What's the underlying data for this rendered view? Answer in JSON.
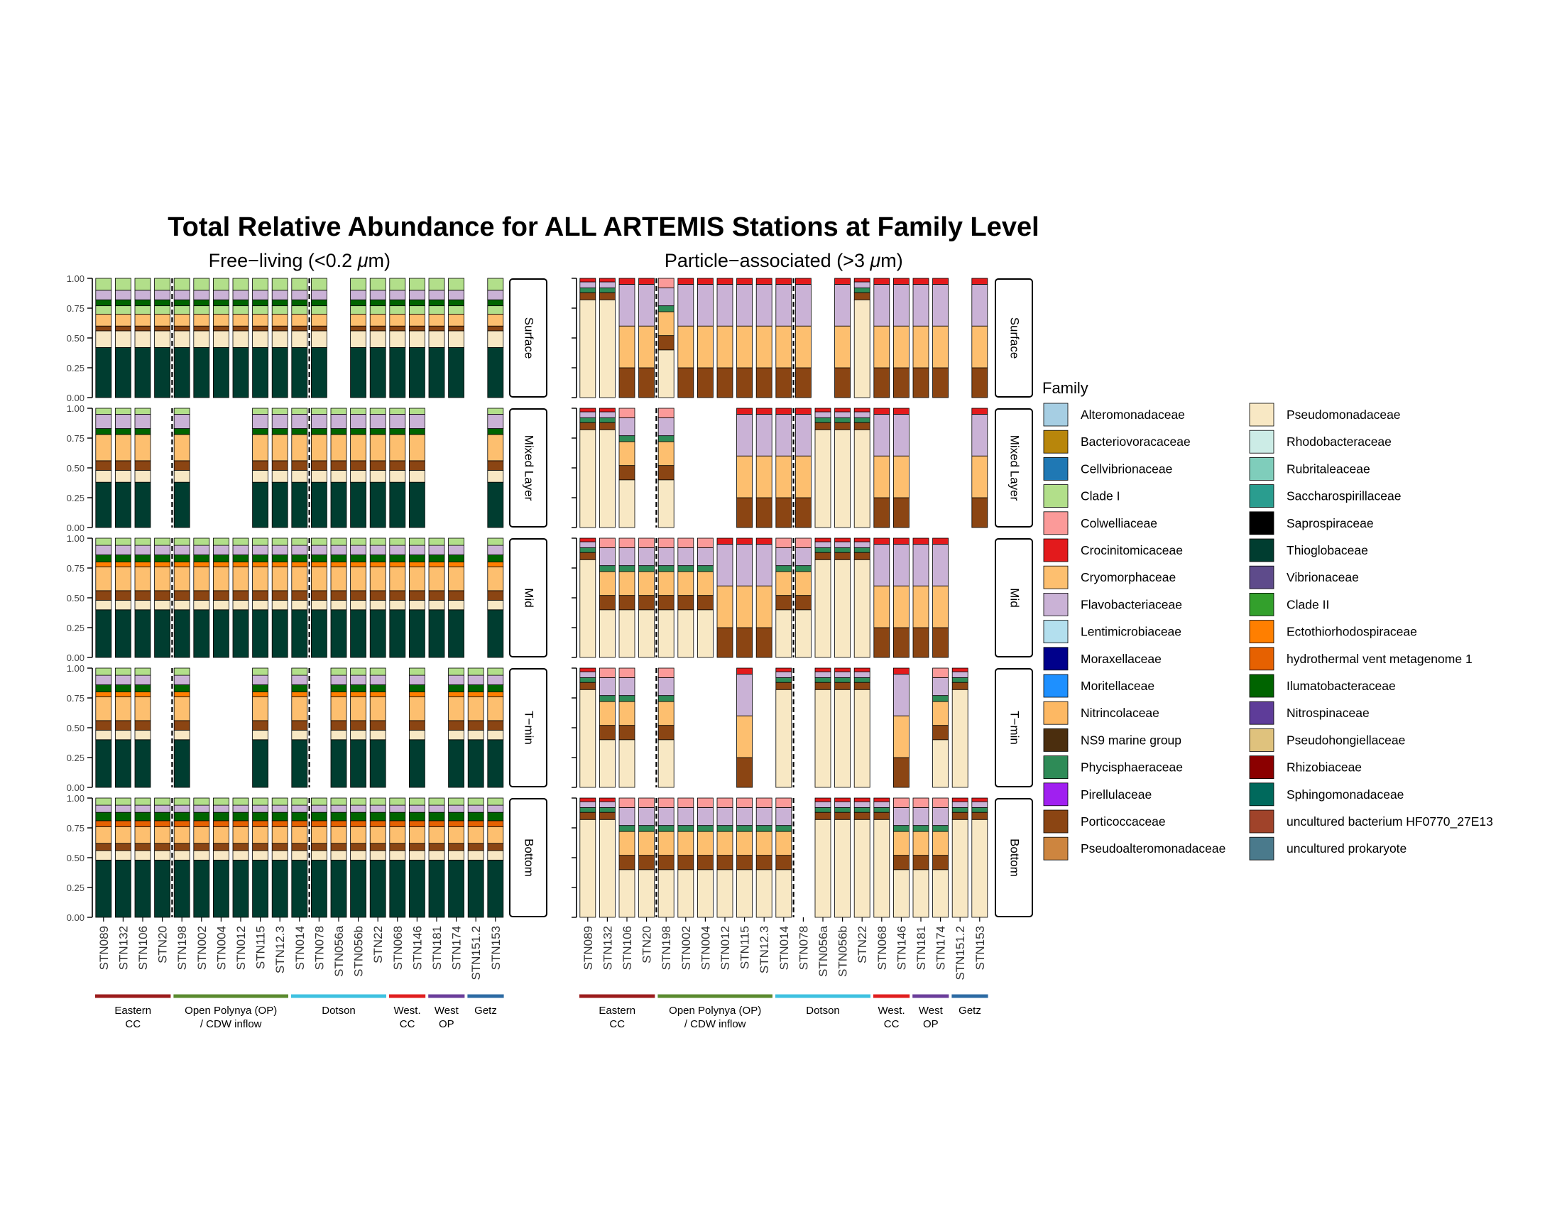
{
  "chart_data": {
    "type": "bar",
    "stacked": true,
    "title": "Total Relative Abundance for ALL ARTEMIS Stations at Family Level",
    "panels": [
      "Free-living (<0.2 μm)",
      "Particle-associated (>3 μm)"
    ],
    "panel_parts": [
      [
        "Free−living (<0.2 ",
        "μ",
        "m)"
      ],
      [
        "Particle−associated (>3 ",
        "μ",
        "m)"
      ]
    ],
    "depth_layers": [
      "Surface",
      "Mixed Layer",
      "Mid",
      "T−min",
      "Bottom"
    ],
    "stations": [
      "STN089",
      "STN132",
      "STN106",
      "STN20",
      "STN198",
      "STN002",
      "STN004",
      "STN012",
      "STN115",
      "STN12.3",
      "STN014",
      "STN078",
      "STN056a",
      "STN056b",
      "STN22",
      "STN068",
      "STN146",
      "STN181",
      "STN174",
      "STN151.2",
      "STN153"
    ],
    "yticks": [
      "0.00",
      "0.25",
      "0.50",
      "0.75",
      "1.00"
    ],
    "ylim": [
      0,
      1
    ],
    "regions": [
      {
        "label": [
          "Eastern",
          "CC"
        ],
        "from": 0,
        "to": 3,
        "color": "#9b1b1b"
      },
      {
        "label": [
          "Open Polynya (OP)",
          "/ CDW inflow"
        ],
        "from": 4,
        "to": 9,
        "color": "#5a8a2e"
      },
      {
        "label": [
          "Dotson"
        ],
        "from": 10,
        "to": 14,
        "color": "#3ec1e0"
      },
      {
        "label": [
          "West.",
          "CC"
        ],
        "from": 15,
        "to": 16,
        "color": "#e01e1e"
      },
      {
        "label": [
          "West",
          "OP"
        ],
        "from": 17,
        "to": 18,
        "color": "#6a3d9a"
      },
      {
        "label": [
          "Getz"
        ],
        "from": 19,
        "to": 20,
        "color": "#2c6aa3"
      }
    ],
    "dashed_after_station": [
      3,
      10
    ],
    "legend_title": "Family",
    "legend_placement": "right",
    "families": [
      {
        "name": "Alteromonadaceae",
        "color": "#a6cee3"
      },
      {
        "name": "Bacteriovoracaceae",
        "color": "#b8860b"
      },
      {
        "name": "Cellvibrionaceae",
        "color": "#1f78b4"
      },
      {
        "name": "Clade I",
        "color": "#b2df8a"
      },
      {
        "name": "Colwelliaceae",
        "color": "#fb9a99"
      },
      {
        "name": "Crocinitomicaceae",
        "color": "#e31a1c"
      },
      {
        "name": "Cryomorphaceae",
        "color": "#fdbf6f"
      },
      {
        "name": "Flavobacteriaceae",
        "color": "#cab2d6"
      },
      {
        "name": "Lentimicrobiaceae",
        "color": "#b3dfee"
      },
      {
        "name": "Moraxellaceae",
        "color": "#00008b"
      },
      {
        "name": "Moritellaceae",
        "color": "#1e90ff"
      },
      {
        "name": "Nitrincolaceae",
        "color": "#fdb863"
      },
      {
        "name": "NS9 marine group",
        "color": "#4b2e0e"
      },
      {
        "name": "Phycisphaeraceae",
        "color": "#2e8b57"
      },
      {
        "name": "Pirellulaceae",
        "color": "#a020f0"
      },
      {
        "name": "Porticoccaceae",
        "color": "#8b4513"
      },
      {
        "name": "Pseudoalteromonadaceae",
        "color": "#cd853f"
      },
      {
        "name": "Pseudomonadaceae",
        "color": "#f8e8c4"
      },
      {
        "name": "Rhodobacteraceae",
        "color": "#ccece6"
      },
      {
        "name": "Rubritaleaceae",
        "color": "#7fcdbb"
      },
      {
        "name": "Saccharospirillaceae",
        "color": "#2a9d8f"
      },
      {
        "name": "Saprospiraceae",
        "color": "#000000"
      },
      {
        "name": "Thioglobaceae",
        "color": "#003d30"
      },
      {
        "name": "Vibrionaceae",
        "color": "#5e4b8b"
      },
      {
        "name": "Clade II",
        "color": "#33a02c"
      },
      {
        "name": "Ectothiorhodospiraceae",
        "color": "#ff7f00"
      },
      {
        "name": "hydrothermal vent metagenome 1",
        "color": "#e66101"
      },
      {
        "name": "Ilumatobacteraceae",
        "color": "#006400"
      },
      {
        "name": "Nitrospinaceae",
        "color": "#5e3c99"
      },
      {
        "name": "Pseudohongiellaceae",
        "color": "#dfc27d"
      },
      {
        "name": "Rhizobiaceae",
        "color": "#8b0000"
      },
      {
        "name": "Sphingomonadaceae",
        "color": "#00695c"
      },
      {
        "name": "uncultured bacterium HF0770_27E13",
        "color": "#a0432a"
      },
      {
        "name": "uncultured prokaryote",
        "color": "#4a7a8c"
      }
    ],
    "profiles": {
      "fl_surf": [
        [
          "Thioglobaceae",
          0.42
        ],
        [
          "Pseudomonadaceae",
          0.14
        ],
        [
          "Porticoccaceae",
          0.04
        ],
        [
          "Cryomorphaceae",
          0.1
        ],
        [
          "Clade I",
          0.07
        ],
        [
          "Ilumatobacteraceae",
          0.05
        ],
        [
          "Flavobacteriaceae",
          0.08
        ],
        [
          "Clade I",
          0.1
        ]
      ],
      "fl_mixed": [
        [
          "Thioglobaceae",
          0.38
        ],
        [
          "Pseudomonadaceae",
          0.1
        ],
        [
          "Porticoccaceae",
          0.08
        ],
        [
          "Cryomorphaceae",
          0.22
        ],
        [
          "Ilumatobacteraceae",
          0.05
        ],
        [
          "Flavobacteriaceae",
          0.12
        ],
        [
          "Clade I",
          0.05
        ]
      ],
      "fl_mid": [
        [
          "Thioglobaceae",
          0.4
        ],
        [
          "Pseudomonadaceae",
          0.08
        ],
        [
          "Porticoccaceae",
          0.08
        ],
        [
          "Cryomorphaceae",
          0.2
        ],
        [
          "Ectothiorhodospiraceae",
          0.04
        ],
        [
          "Ilumatobacteraceae",
          0.06
        ],
        [
          "Flavobacteriaceae",
          0.08
        ],
        [
          "Clade I",
          0.06
        ]
      ],
      "fl_bottom": [
        [
          "Thioglobaceae",
          0.48
        ],
        [
          "Pseudomonadaceae",
          0.08
        ],
        [
          "Porticoccaceae",
          0.06
        ],
        [
          "Cryomorphaceae",
          0.14
        ],
        [
          "hydrothermal vent metagenome 1",
          0.05
        ],
        [
          "Ilumatobacteraceae",
          0.07
        ],
        [
          "Flavobacteriaceae",
          0.06
        ],
        [
          "Clade I",
          0.06
        ]
      ],
      "pa_pseudo": [
        [
          "Pseudomonadaceae",
          0.82
        ],
        [
          "Porticoccaceae",
          0.06
        ],
        [
          "Phycisphaeraceae",
          0.04
        ],
        [
          "Flavobacteriaceae",
          0.05
        ],
        [
          "Crocinitomicaceae",
          0.03
        ]
      ],
      "pa_flavo": [
        [
          "Porticoccaceae",
          0.25
        ],
        [
          "Cryomorphaceae",
          0.35
        ],
        [
          "Flavobacteriaceae",
          0.35
        ],
        [
          "Crocinitomicaceae",
          0.05
        ]
      ],
      "pa_mixed": [
        [
          "Pseudomonadaceae",
          0.4
        ],
        [
          "Porticoccaceae",
          0.12
        ],
        [
          "Cryomorphaceae",
          0.2
        ],
        [
          "Phycisphaeraceae",
          0.05
        ],
        [
          "Flavobacteriaceae",
          0.15
        ],
        [
          "Colwelliaceae",
          0.08
        ]
      ]
    },
    "samples": {
      "free_living": {
        "Surface": [
          "fl_surf",
          "fl_surf",
          "fl_surf",
          "fl_surf",
          "fl_surf",
          "fl_surf",
          "fl_surf",
          "fl_surf",
          "fl_surf",
          "fl_surf",
          "fl_surf",
          "fl_surf",
          null,
          "fl_surf",
          "fl_surf",
          "fl_surf",
          "fl_surf",
          "fl_surf",
          "fl_surf",
          null,
          "fl_surf"
        ],
        "Mixed Layer": [
          "fl_mixed",
          "fl_mixed",
          "fl_mixed",
          null,
          "fl_mixed",
          null,
          null,
          null,
          "fl_mixed",
          "fl_mixed",
          "fl_mixed",
          "fl_mixed",
          "fl_mixed",
          "fl_mixed",
          "fl_mixed",
          "fl_mixed",
          "fl_mixed",
          null,
          null,
          null,
          "fl_mixed"
        ],
        "Mid": [
          "fl_mid",
          "fl_mid",
          "fl_mid",
          "fl_mid",
          "fl_mid",
          "fl_mid",
          "fl_mid",
          "fl_mid",
          "fl_mid",
          "fl_mid",
          "fl_mid",
          "fl_mid",
          "fl_mid",
          "fl_mid",
          "fl_mid",
          "fl_mid",
          "fl_mid",
          "fl_mid",
          "fl_mid",
          null,
          "fl_mid"
        ],
        "T−min": [
          "fl_mid",
          "fl_mid",
          "fl_mid",
          null,
          "fl_mid",
          null,
          null,
          null,
          "fl_mid",
          null,
          "fl_mid",
          null,
          "fl_mid",
          "fl_mid",
          "fl_mid",
          null,
          "fl_mid",
          null,
          "fl_mid",
          "fl_mid",
          "fl_mid"
        ],
        "Bottom": [
          "fl_bottom",
          "fl_bottom",
          "fl_bottom",
          "fl_bottom",
          "fl_bottom",
          "fl_bottom",
          "fl_bottom",
          "fl_bottom",
          "fl_bottom",
          "fl_bottom",
          "fl_bottom",
          "fl_bottom",
          "fl_bottom",
          "fl_bottom",
          "fl_bottom",
          "fl_bottom",
          "fl_bottom",
          "fl_bottom",
          "fl_bottom",
          "fl_bottom",
          "fl_bottom"
        ]
      },
      "particle_associated": {
        "Surface": [
          "pa_pseudo",
          "pa_pseudo",
          "pa_flavo",
          "pa_flavo",
          "pa_mixed",
          "pa_flavo",
          "pa_flavo",
          "pa_flavo",
          "pa_flavo",
          "pa_flavo",
          "pa_flavo",
          "pa_flavo",
          null,
          "pa_flavo",
          "pa_pseudo",
          "pa_flavo",
          "pa_flavo",
          "pa_flavo",
          "pa_flavo",
          null,
          "pa_flavo"
        ],
        "Mixed Layer": [
          "pa_pseudo",
          "pa_pseudo",
          "pa_mixed",
          null,
          "pa_mixed",
          null,
          null,
          null,
          "pa_flavo",
          "pa_flavo",
          "pa_flavo",
          "pa_flavo",
          "pa_pseudo",
          "pa_pseudo",
          "pa_pseudo",
          "pa_flavo",
          "pa_flavo",
          null,
          null,
          null,
          "pa_flavo"
        ],
        "Mid": [
          "pa_pseudo",
          "pa_mixed",
          "pa_mixed",
          "pa_mixed",
          "pa_mixed",
          "pa_mixed",
          "pa_mixed",
          "pa_flavo",
          "pa_flavo",
          "pa_flavo",
          "pa_mixed",
          "pa_mixed",
          "pa_pseudo",
          "pa_pseudo",
          "pa_pseudo",
          "pa_flavo",
          "pa_flavo",
          "pa_flavo",
          "pa_flavo",
          null,
          null
        ],
        "T−min": [
          "pa_pseudo",
          "pa_mixed",
          "pa_mixed",
          null,
          "pa_mixed",
          null,
          null,
          null,
          "pa_flavo",
          null,
          "pa_pseudo",
          null,
          "pa_pseudo",
          "pa_pseudo",
          "pa_pseudo",
          null,
          "pa_flavo",
          null,
          "pa_mixed",
          "pa_pseudo",
          null
        ],
        "Bottom": [
          "pa_pseudo",
          "pa_pseudo",
          "pa_mixed",
          "pa_mixed",
          "pa_mixed",
          "pa_mixed",
          "pa_mixed",
          "pa_mixed",
          "pa_mixed",
          "pa_mixed",
          "pa_mixed",
          null,
          "pa_pseudo",
          "pa_pseudo",
          "pa_pseudo",
          "pa_pseudo",
          "pa_mixed",
          "pa_mixed",
          "pa_mixed",
          "pa_pseudo",
          "pa_pseudo"
        ]
      }
    }
  }
}
